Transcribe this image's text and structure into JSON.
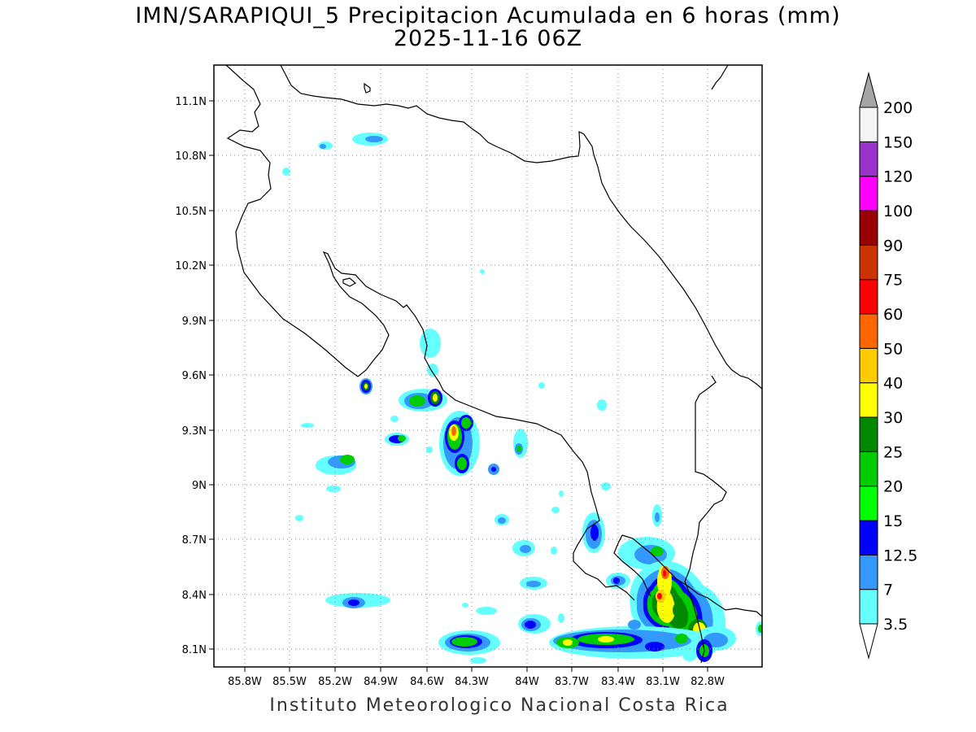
{
  "title": {
    "line1": "IMN/SARAPIQUI_5 Precipitacion Acumulada en 6 horas (mm)",
    "line2": "2025-11-16 06Z"
  },
  "map": {
    "lon_range": [
      -86.0,
      -82.6
    ],
    "lat_range": [
      8.0,
      11.3
    ],
    "lon_ticks": [
      "85.8W",
      "85.5W",
      "85.2W",
      "84.9W",
      "84.6W",
      "84.3W",
      "84W",
      "83.7W",
      "83.4W",
      "83.1W",
      "82.8W"
    ],
    "lat_ticks": [
      "11.1N",
      "10.8N",
      "10.5N",
      "10.2N",
      "9.9N",
      "9.6N",
      "9.3N",
      "9N",
      "8.7N",
      "8.4N",
      "8.1N"
    ],
    "grid": "dotted"
  },
  "colorbar": {
    "labels": [
      "3.5",
      "7",
      "12.5",
      "15",
      "20",
      "25",
      "30",
      "40",
      "50",
      "60",
      "75",
      "90",
      "100",
      "120",
      "150",
      "200"
    ],
    "colors": [
      "#66ffff",
      "#3399ff",
      "#0000ff",
      "#00ff00",
      "#00cc00",
      "#008800",
      "#ffff00",
      "#ffcc00",
      "#ff6600",
      "#ff0000",
      "#cc3300",
      "#990000",
      "#ff00ff",
      "#9933cc",
      "#f5f5f5",
      "#a6a6a6"
    ]
  },
  "footer": "Instituto Meteorologico Nacional Costa Rica"
}
